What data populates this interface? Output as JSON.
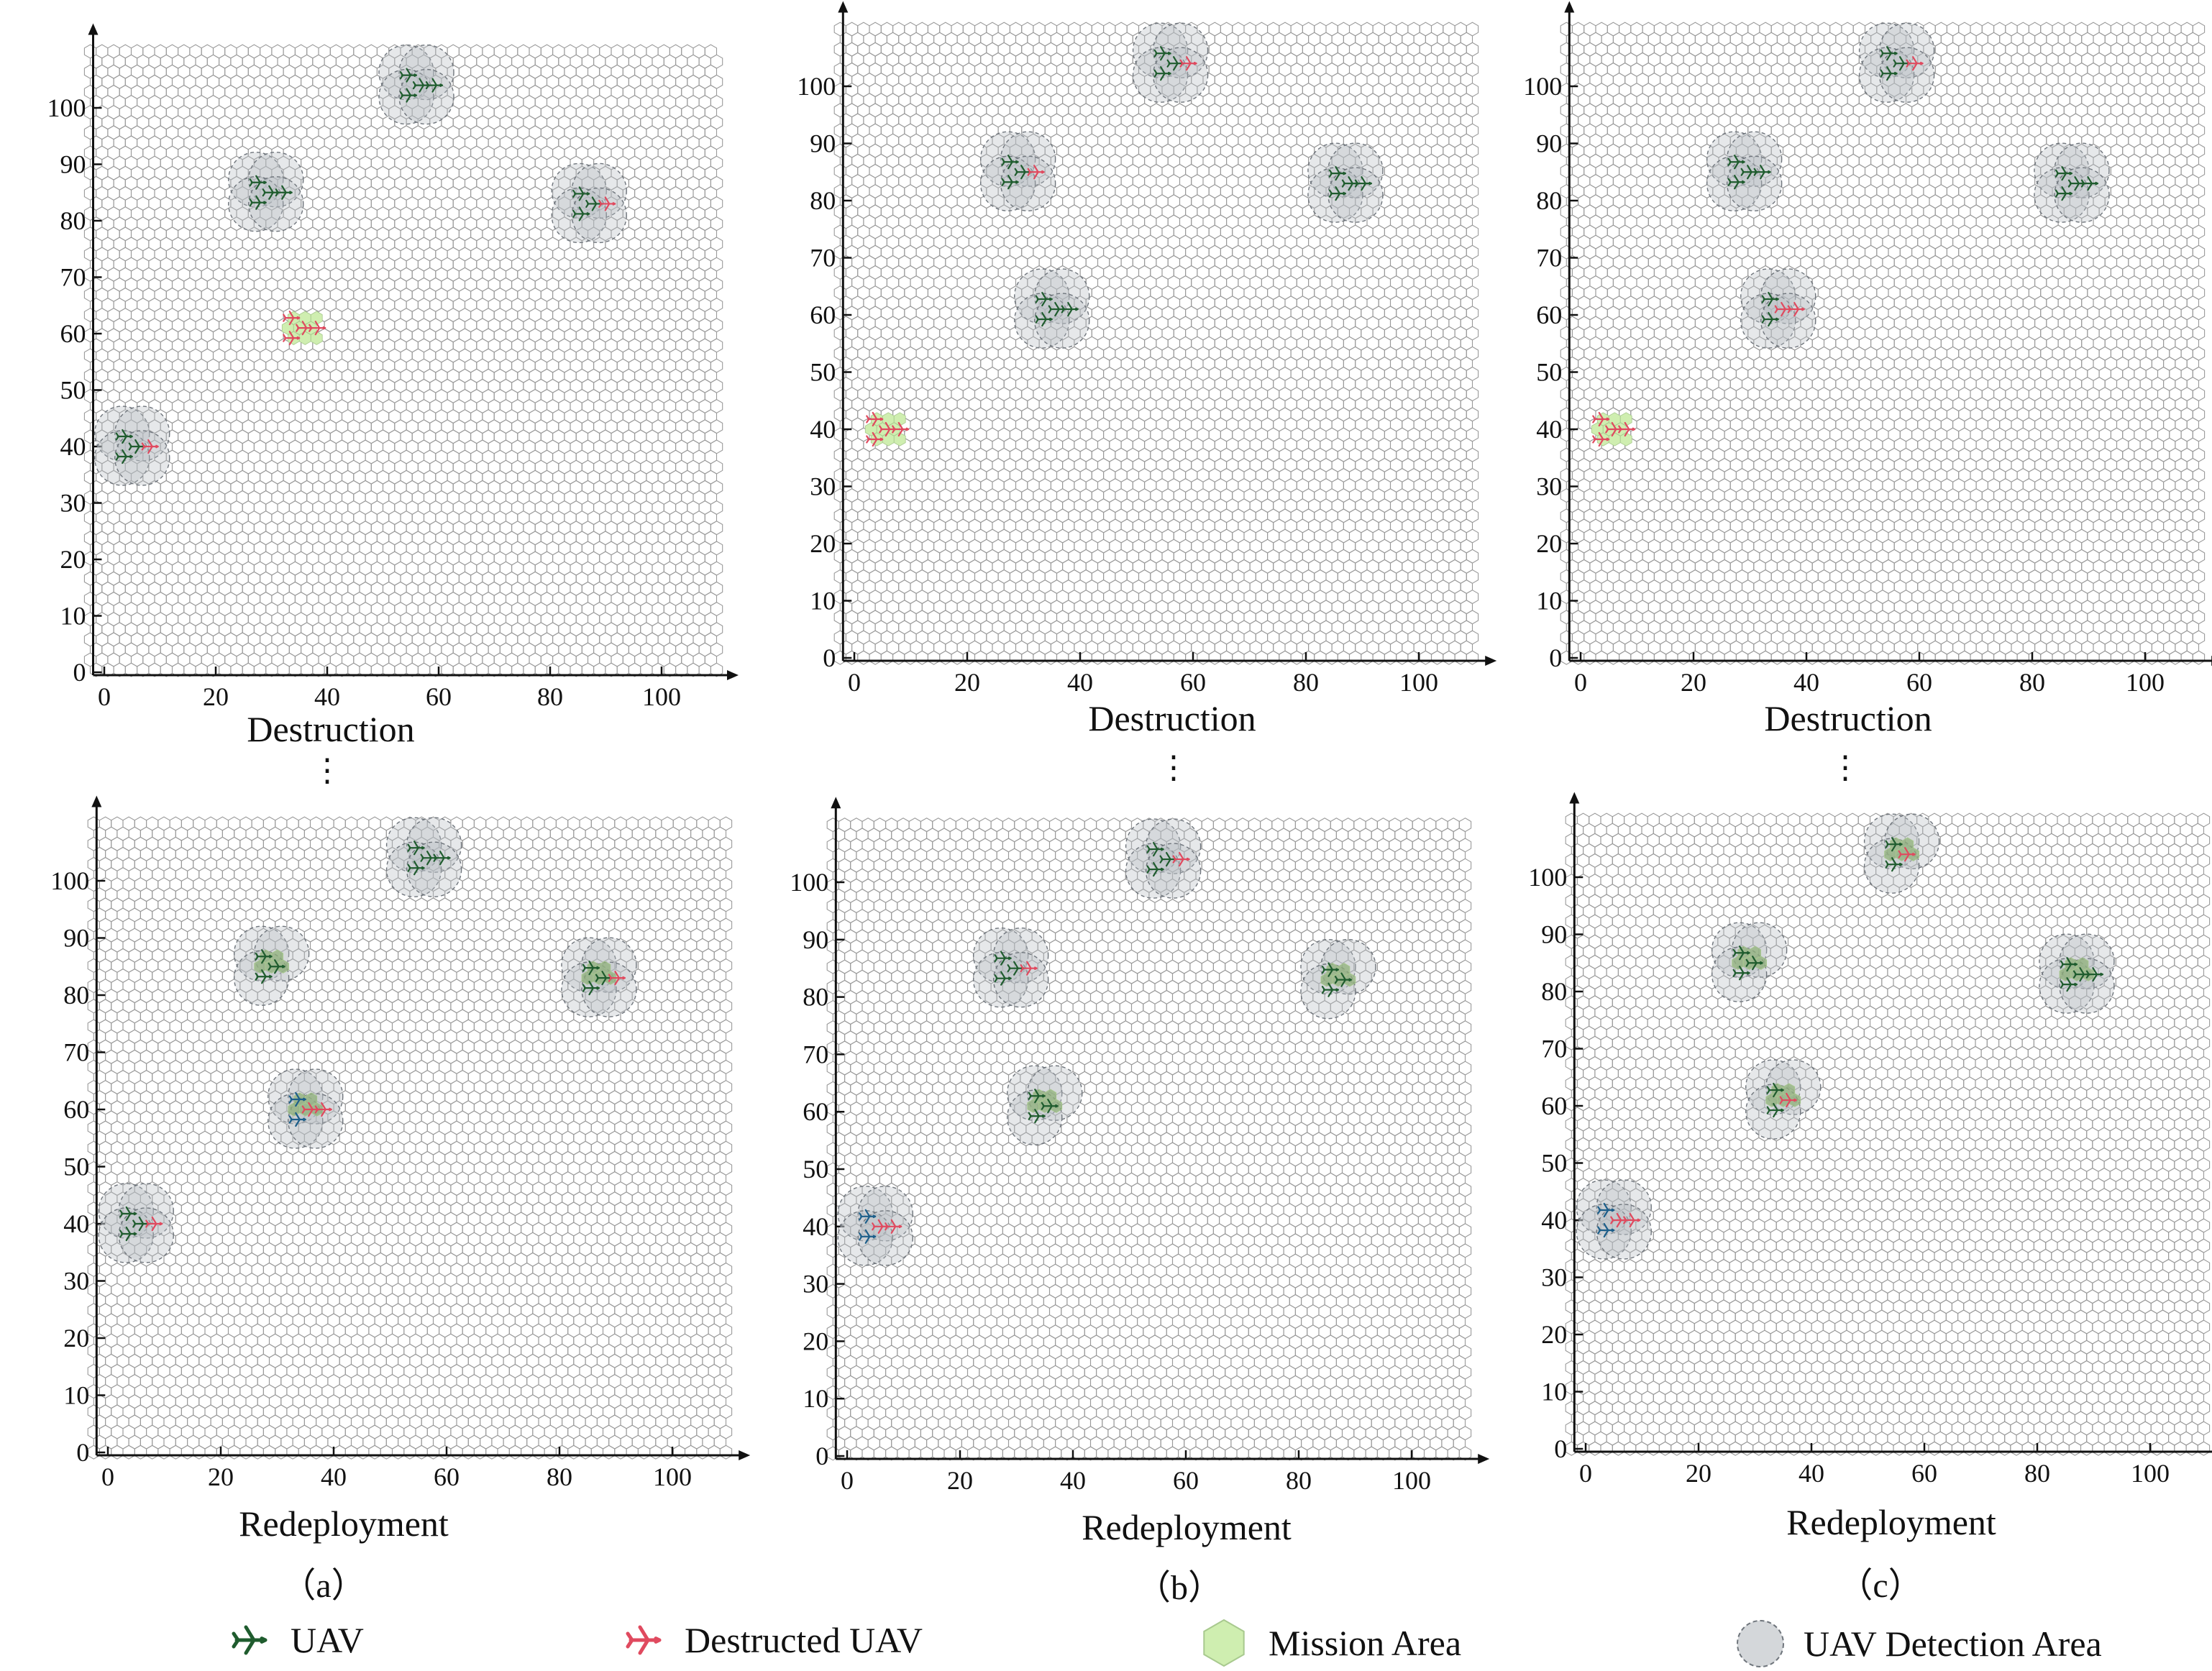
{
  "colors": {
    "uav": "#1f5c2e",
    "uav_blue": "#1d5f8a",
    "destructed": "#e04a5f",
    "mission": "#cfeeb0",
    "mission_covered": "#8fb07a",
    "detection": "#b7bcc2",
    "hex_stroke": "#9a9a9a",
    "axis": "#111111"
  },
  "legend": [
    {
      "icon": "uav-icon",
      "label": "UAV"
    },
    {
      "icon": "destructed-uav-icon",
      "label": "Destructed UAV"
    },
    {
      "icon": "mission-area-icon",
      "label": "Mission Area"
    },
    {
      "icon": "detection-area-icon",
      "label": "UAV Detection Area"
    }
  ],
  "panel_letters": [
    "（a）",
    "（b）",
    "（c）"
  ],
  "ellipsis": "⋮",
  "chart_data": [
    {
      "id": "a-top",
      "type": "scatter",
      "xlabel": "Destruction",
      "xlim": [
        -2,
        112
      ],
      "ylim": [
        0,
        110
      ],
      "xticks": [
        0,
        20,
        40,
        60,
        80,
        100
      ],
      "yticks": [
        0,
        10,
        20,
        30,
        40,
        50,
        60,
        70,
        80,
        90,
        100
      ],
      "clusters": [
        {
          "x": 56,
          "y": 104,
          "uavs": 4,
          "destructed": 0,
          "mission": false
        },
        {
          "x": 29,
          "y": 85,
          "uavs": 4,
          "destructed": 0,
          "mission": false
        },
        {
          "x": 87,
          "y": 83,
          "uavs": 3,
          "destructed": 1,
          "mission": false
        },
        {
          "x": 35,
          "y": 61,
          "uavs": 0,
          "destructed": 4,
          "mission": true,
          "detection": false
        },
        {
          "x": 5,
          "y": 40,
          "uavs": 3,
          "destructed": 1,
          "mission": false
        }
      ]
    },
    {
      "id": "a-bottom",
      "type": "scatter",
      "xlabel": "Redeployment",
      "xlim": [
        -2,
        112
      ],
      "ylim": [
        0,
        110
      ],
      "xticks": [
        0,
        20,
        40,
        60,
        80,
        100
      ],
      "yticks": [
        0,
        10,
        20,
        30,
        40,
        50,
        60,
        70,
        80,
        90,
        100
      ],
      "clusters": [
        {
          "x": 56,
          "y": 104,
          "uavs": 4,
          "destructed": 0,
          "mission": false
        },
        {
          "x": 29,
          "y": 85,
          "uavs": 3,
          "destructed": 0,
          "mission": true
        },
        {
          "x": 87,
          "y": 83,
          "uavs": 3,
          "destructed": 1,
          "mission": true
        },
        {
          "x": 35,
          "y": 60,
          "uavs": 2,
          "destructed": 2,
          "mission": true,
          "blue": true
        },
        {
          "x": 5,
          "y": 40,
          "uavs": 3,
          "destructed": 1,
          "mission": false
        }
      ]
    },
    {
      "id": "b-top",
      "type": "scatter",
      "xlabel": "Destruction",
      "xlim": [
        -2,
        112
      ],
      "ylim": [
        0,
        110
      ],
      "xticks": [
        0,
        20,
        40,
        60,
        80,
        100
      ],
      "yticks": [
        0,
        10,
        20,
        30,
        40,
        50,
        60,
        70,
        80,
        90,
        100
      ],
      "clusters": [
        {
          "x": 56,
          "y": 104,
          "uavs": 3,
          "destructed": 1,
          "mission": false
        },
        {
          "x": 29,
          "y": 85,
          "uavs": 3,
          "destructed": 1,
          "mission": false
        },
        {
          "x": 87,
          "y": 83,
          "uavs": 4,
          "destructed": 0,
          "mission": false
        },
        {
          "x": 35,
          "y": 61,
          "uavs": 4,
          "destructed": 0,
          "mission": false
        },
        {
          "x": 5,
          "y": 40,
          "uavs": 0,
          "destructed": 4,
          "mission": true,
          "detection": false
        }
      ]
    },
    {
      "id": "b-bottom",
      "type": "scatter",
      "xlabel": "Redeployment",
      "xlim": [
        -2,
        112
      ],
      "ylim": [
        0,
        110
      ],
      "xticks": [
        0,
        20,
        40,
        60,
        80,
        100
      ],
      "yticks": [
        0,
        10,
        20,
        30,
        40,
        50,
        60,
        70,
        80,
        90,
        100
      ],
      "clusters": [
        {
          "x": 56,
          "y": 104,
          "uavs": 3,
          "destructed": 1,
          "mission": false
        },
        {
          "x": 29,
          "y": 85,
          "uavs": 3,
          "destructed": 1,
          "mission": false
        },
        {
          "x": 87,
          "y": 83,
          "uavs": 3,
          "destructed": 0,
          "mission": true
        },
        {
          "x": 35,
          "y": 61,
          "uavs": 3,
          "destructed": 0,
          "mission": true
        },
        {
          "x": 5,
          "y": 40,
          "uavs": 2,
          "destructed": 2,
          "mission": false,
          "blue": true
        }
      ]
    },
    {
      "id": "c-top",
      "type": "scatter",
      "xlabel": "Destruction",
      "xlim": [
        -2,
        112
      ],
      "ylim": [
        0,
        110
      ],
      "xticks": [
        0,
        20,
        40,
        60,
        80,
        100
      ],
      "yticks": [
        0,
        10,
        20,
        30,
        40,
        50,
        60,
        70,
        80,
        90,
        100
      ],
      "clusters": [
        {
          "x": 56,
          "y": 104,
          "uavs": 3,
          "destructed": 1,
          "mission": false
        },
        {
          "x": 29,
          "y": 85,
          "uavs": 4,
          "destructed": 0,
          "mission": false
        },
        {
          "x": 87,
          "y": 83,
          "uavs": 4,
          "destructed": 0,
          "mission": false
        },
        {
          "x": 35,
          "y": 61,
          "uavs": 2,
          "destructed": 2,
          "mission": false
        },
        {
          "x": 5,
          "y": 40,
          "uavs": 0,
          "destructed": 4,
          "mission": true,
          "detection": false
        }
      ]
    },
    {
      "id": "c-bottom",
      "type": "scatter",
      "xlabel": "Redeployment",
      "xlim": [
        -2,
        112
      ],
      "ylim": [
        0,
        110
      ],
      "xticks": [
        0,
        20,
        40,
        60,
        80,
        100
      ],
      "yticks": [
        0,
        10,
        20,
        30,
        40,
        50,
        60,
        70,
        80,
        90,
        100
      ],
      "clusters": [
        {
          "x": 56,
          "y": 104,
          "uavs": 2,
          "destructed": 1,
          "mission": true
        },
        {
          "x": 29,
          "y": 85,
          "uavs": 3,
          "destructed": 0,
          "mission": true
        },
        {
          "x": 87,
          "y": 83,
          "uavs": 4,
          "destructed": 0,
          "mission": true
        },
        {
          "x": 35,
          "y": 61,
          "uavs": 2,
          "destructed": 1,
          "mission": true
        },
        {
          "x": 5,
          "y": 40,
          "uavs": 2,
          "destructed": 2,
          "mission": false,
          "blue": true
        }
      ]
    }
  ]
}
